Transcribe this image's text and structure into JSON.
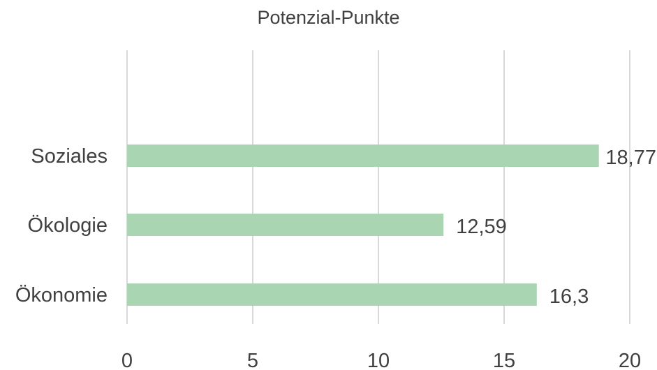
{
  "chart_data": {
    "type": "bar",
    "orientation": "horizontal",
    "title": "Potenzial-Punkte",
    "categories": [
      "Soziales",
      "Ökologie",
      "Ökonomie"
    ],
    "values": [
      18.77,
      12.59,
      16.3
    ],
    "data_labels": [
      "18,77",
      "12,59",
      "16,3"
    ],
    "xlim": [
      0,
      20
    ],
    "x_ticks": [
      0,
      5,
      10,
      15,
      20
    ],
    "x_tick_labels": [
      "0",
      "5",
      "10",
      "15",
      "20"
    ],
    "grid": "vertical",
    "legend": "none",
    "colors": {
      "bar": "#a9d5b3",
      "grid": "#d9d9d9",
      "text": "#404040"
    }
  }
}
